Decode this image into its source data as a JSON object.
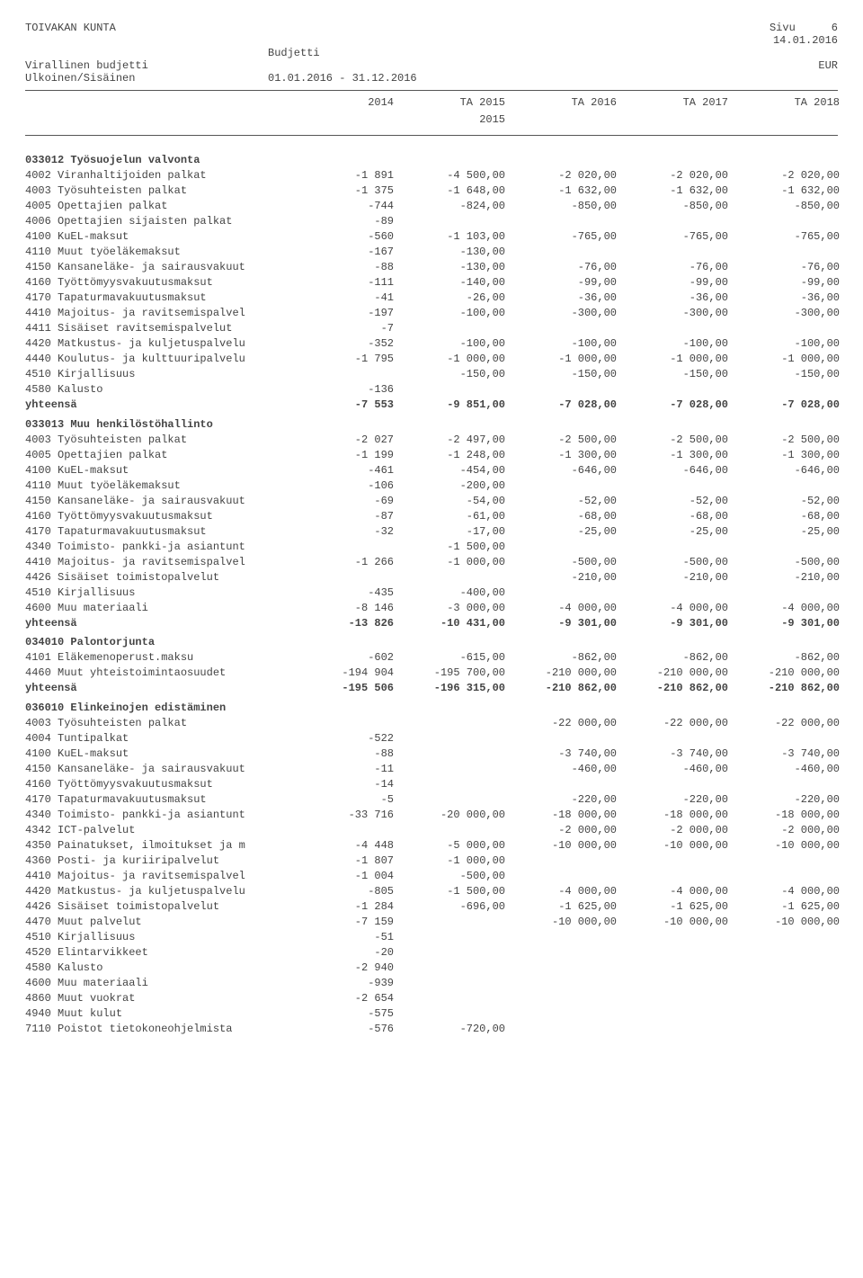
{
  "header": {
    "org": "TOIVAKAN KUNTA",
    "page_label": "Sivu",
    "page_num": "6",
    "date": "14.01.2016",
    "budjetti": "Budjetti",
    "virallinen": "Virallinen budjetti",
    "currency": "EUR",
    "ulk": "Ulkoinen/Sisäinen",
    "period": "01.01.2016 - 31.12.2016"
  },
  "columns": [
    "2014",
    "TA 2015",
    "TA 2016",
    "TA 2017",
    "TA 2018"
  ],
  "columns_sub": "2015",
  "sections": [
    {
      "title": "033012 Työsuojelun valvonta",
      "rows": [
        {
          "l": "4002 Viranhaltijoiden palkat",
          "v": [
            "-1 891",
            "-4 500,00",
            "-2 020,00",
            "-2 020,00",
            "-2 020,00"
          ]
        },
        {
          "l": "4003 Työsuhteisten palkat",
          "v": [
            "-1 375",
            "-1 648,00",
            "-1 632,00",
            "-1 632,00",
            "-1 632,00"
          ]
        },
        {
          "l": "4005 Opettajien palkat",
          "v": [
            "-744",
            "-824,00",
            "-850,00",
            "-850,00",
            "-850,00"
          ]
        },
        {
          "l": "4006 Opettajien sijaisten palkat",
          "v": [
            "-89",
            "",
            "",
            "",
            ""
          ]
        },
        {
          "l": "4100 KuEL-maksut",
          "v": [
            "-560",
            "-1 103,00",
            "-765,00",
            "-765,00",
            "-765,00"
          ]
        },
        {
          "l": "4110 Muut työeläkemaksut",
          "v": [
            "-167",
            "-130,00",
            "",
            "",
            ""
          ]
        },
        {
          "l": "4150 Kansaneläke- ja sairausvakuut",
          "v": [
            "-88",
            "-130,00",
            "-76,00",
            "-76,00",
            "-76,00"
          ]
        },
        {
          "l": "4160 Työttömyysvakuutusmaksut",
          "v": [
            "-111",
            "-140,00",
            "-99,00",
            "-99,00",
            "-99,00"
          ]
        },
        {
          "l": "4170 Tapaturmavakuutusmaksut",
          "v": [
            "-41",
            "-26,00",
            "-36,00",
            "-36,00",
            "-36,00"
          ]
        },
        {
          "l": "4410 Majoitus- ja ravitsemispalvel",
          "v": [
            "-197",
            "-100,00",
            "-300,00",
            "-300,00",
            "-300,00"
          ]
        },
        {
          "l": "4411 Sisäiset ravitsemispalvelut",
          "v": [
            "-7",
            "",
            "",
            "",
            ""
          ]
        },
        {
          "l": "4420 Matkustus- ja kuljetuspalvelu",
          "v": [
            "-352",
            "-100,00",
            "-100,00",
            "-100,00",
            "-100,00"
          ]
        },
        {
          "l": "4440 Koulutus- ja kulttuuripalvelu",
          "v": [
            "-1 795",
            "-1 000,00",
            "-1 000,00",
            "-1 000,00",
            "-1 000,00"
          ]
        },
        {
          "l": "4510 Kirjallisuus",
          "v": [
            "",
            "-150,00",
            "-150,00",
            "-150,00",
            "-150,00"
          ]
        },
        {
          "l": "4580 Kalusto",
          "v": [
            "-136",
            "",
            "",
            "",
            ""
          ]
        }
      ],
      "total": {
        "l": "yhteensä",
        "v": [
          "-7 553",
          "-9 851,00",
          "-7 028,00",
          "-7 028,00",
          "-7 028,00"
        ]
      }
    },
    {
      "title": "033013 Muu henkilöstöhallinto",
      "rows": [
        {
          "l": "4003 Työsuhteisten palkat",
          "v": [
            "-2 027",
            "-2 497,00",
            "-2 500,00",
            "-2 500,00",
            "-2 500,00"
          ]
        },
        {
          "l": "4005 Opettajien palkat",
          "v": [
            "-1 199",
            "-1 248,00",
            "-1 300,00",
            "-1 300,00",
            "-1 300,00"
          ]
        },
        {
          "l": "4100 KuEL-maksut",
          "v": [
            "-461",
            "-454,00",
            "-646,00",
            "-646,00",
            "-646,00"
          ]
        },
        {
          "l": "4110 Muut työeläkemaksut",
          "v": [
            "-106",
            "-200,00",
            "",
            "",
            ""
          ]
        },
        {
          "l": "4150 Kansaneläke- ja sairausvakuut",
          "v": [
            "-69",
            "-54,00",
            "-52,00",
            "-52,00",
            "-52,00"
          ]
        },
        {
          "l": "4160 Työttömyysvakuutusmaksut",
          "v": [
            "-87",
            "-61,00",
            "-68,00",
            "-68,00",
            "-68,00"
          ]
        },
        {
          "l": "4170 Tapaturmavakuutusmaksut",
          "v": [
            "-32",
            "-17,00",
            "-25,00",
            "-25,00",
            "-25,00"
          ]
        },
        {
          "l": "4340 Toimisto- pankki-ja asiantunt",
          "v": [
            "",
            "-1 500,00",
            "",
            "",
            ""
          ]
        },
        {
          "l": "4410 Majoitus- ja ravitsemispalvel",
          "v": [
            "-1 266",
            "-1 000,00",
            "-500,00",
            "-500,00",
            "-500,00"
          ]
        },
        {
          "l": "4426 Sisäiset toimistopalvelut",
          "v": [
            "",
            "",
            "-210,00",
            "-210,00",
            "-210,00"
          ]
        },
        {
          "l": "4510 Kirjallisuus",
          "v": [
            "-435",
            "-400,00",
            "",
            "",
            ""
          ]
        },
        {
          "l": "4600 Muu materiaali",
          "v": [
            "-8 146",
            "-3 000,00",
            "-4 000,00",
            "-4 000,00",
            "-4 000,00"
          ]
        }
      ],
      "total": {
        "l": "yhteensä",
        "v": [
          "-13 826",
          "-10 431,00",
          "-9 301,00",
          "-9 301,00",
          "-9 301,00"
        ]
      }
    },
    {
      "title": "034010 Palontorjunta",
      "rows": [
        {
          "l": "4101 Eläkemenoperust.maksu",
          "v": [
            "-602",
            "-615,00",
            "-862,00",
            "-862,00",
            "-862,00"
          ]
        },
        {
          "l": "4460 Muut yhteistoimintaosuudet",
          "v": [
            "-194 904",
            "-195 700,00",
            "-210 000,00",
            "-210 000,00",
            "-210 000,00"
          ]
        }
      ],
      "total": {
        "l": "yhteensä",
        "v": [
          "-195 506",
          "-196 315,00",
          "-210 862,00",
          "-210 862,00",
          "-210 862,00"
        ]
      }
    },
    {
      "title": "036010 Elinkeinojen edistäminen",
      "rows": [
        {
          "l": "4003 Työsuhteisten palkat",
          "v": [
            "",
            "",
            "-22 000,00",
            "-22 000,00",
            "-22 000,00"
          ]
        },
        {
          "l": "4004 Tuntipalkat",
          "v": [
            "-522",
            "",
            "",
            "",
            ""
          ]
        },
        {
          "l": "4100 KuEL-maksut",
          "v": [
            "-88",
            "",
            "-3 740,00",
            "-3 740,00",
            "-3 740,00"
          ]
        },
        {
          "l": "4150 Kansaneläke- ja sairausvakuut",
          "v": [
            "-11",
            "",
            "-460,00",
            "-460,00",
            "-460,00"
          ]
        },
        {
          "l": "4160 Työttömyysvakuutusmaksut",
          "v": [
            "-14",
            "",
            "",
            "",
            ""
          ]
        },
        {
          "l": "4170 Tapaturmavakuutusmaksut",
          "v": [
            "-5",
            "",
            "-220,00",
            "-220,00",
            "-220,00"
          ]
        },
        {
          "l": "4340 Toimisto- pankki-ja asiantunt",
          "v": [
            "-33 716",
            "-20 000,00",
            "-18 000,00",
            "-18 000,00",
            "-18 000,00"
          ]
        },
        {
          "l": "4342 ICT-palvelut",
          "v": [
            "",
            "",
            "-2 000,00",
            "-2 000,00",
            "-2 000,00"
          ]
        },
        {
          "l": "4350 Painatukset, ilmoitukset ja m",
          "v": [
            "-4 448",
            "-5 000,00",
            "-10 000,00",
            "-10 000,00",
            "-10 000,00"
          ]
        },
        {
          "l": "4360 Posti- ja kuriiripalvelut",
          "v": [
            "-1 807",
            "-1 000,00",
            "",
            "",
            ""
          ]
        },
        {
          "l": "4410 Majoitus- ja ravitsemispalvel",
          "v": [
            "-1 004",
            "-500,00",
            "",
            "",
            ""
          ]
        },
        {
          "l": "4420 Matkustus- ja kuljetuspalvelu",
          "v": [
            "-805",
            "-1 500,00",
            "-4 000,00",
            "-4 000,00",
            "-4 000,00"
          ]
        },
        {
          "l": "4426 Sisäiset toimistopalvelut",
          "v": [
            "-1 284",
            "-696,00",
            "-1 625,00",
            "-1 625,00",
            "-1 625,00"
          ]
        },
        {
          "l": "4470 Muut palvelut",
          "v": [
            "-7 159",
            "",
            "-10 000,00",
            "-10 000,00",
            "-10 000,00"
          ]
        },
        {
          "l": "4510 Kirjallisuus",
          "v": [
            "-51",
            "",
            "",
            "",
            ""
          ]
        },
        {
          "l": "4520 Elintarvikkeet",
          "v": [
            "-20",
            "",
            "",
            "",
            ""
          ]
        },
        {
          "l": "4580 Kalusto",
          "v": [
            "-2 940",
            "",
            "",
            "",
            ""
          ]
        },
        {
          "l": "4600 Muu materiaali",
          "v": [
            "-939",
            "",
            "",
            "",
            ""
          ]
        },
        {
          "l": "4860 Muut vuokrat",
          "v": [
            "-2 654",
            "",
            "",
            "",
            ""
          ]
        },
        {
          "l": "4940 Muut kulut",
          "v": [
            "-575",
            "",
            "",
            "",
            ""
          ]
        },
        {
          "l": "7110 Poistot tietokoneohjelmista",
          "v": [
            "-576",
            "-720,00",
            "",
            "",
            ""
          ]
        }
      ]
    }
  ]
}
